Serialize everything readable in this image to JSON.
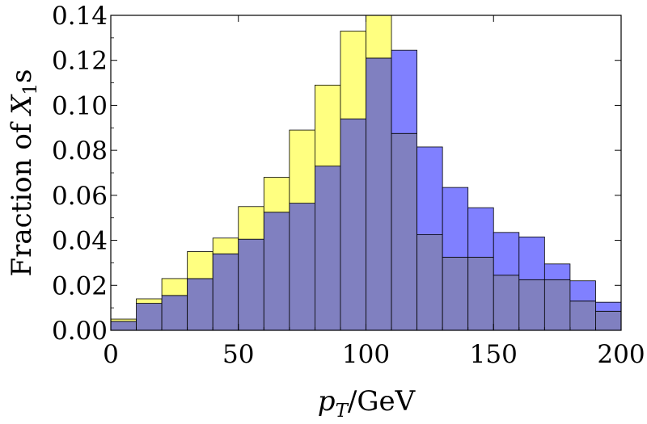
{
  "chart_data": {
    "type": "bar",
    "subtype": "overlaid-histogram",
    "title": "",
    "xlabel": {
      "prefix": "p",
      "subscript": "T",
      "suffix": "/GeV"
    },
    "ylabel": {
      "prefix": "Fraction of ",
      "var": "X",
      "subscript": "1",
      "suffix": "s"
    },
    "xlim": [
      0,
      200
    ],
    "ylim": [
      0,
      0.14
    ],
    "bin_width": 10,
    "bin_edges": [
      0,
      10,
      20,
      30,
      40,
      50,
      60,
      70,
      80,
      90,
      100,
      110,
      120,
      130,
      140,
      150,
      160,
      170,
      180,
      190,
      200
    ],
    "x_ticks": [
      0,
      50,
      100,
      150,
      200
    ],
    "x_tick_labels": [
      "0",
      "50",
      "100",
      "150",
      "200"
    ],
    "y_ticks": [
      0,
      0.02,
      0.04,
      0.06,
      0.08,
      0.1,
      0.12,
      0.14
    ],
    "y_tick_labels": [
      "0.00",
      "0.02",
      "0.04",
      "0.06",
      "0.08",
      "0.10",
      "0.12",
      "0.14"
    ],
    "series": [
      {
        "name": "yellow",
        "color": "#ffff80",
        "values": [
          0.005,
          0.014,
          0.023,
          0.035,
          0.041,
          0.055,
          0.068,
          0.089,
          0.109,
          0.133,
          0.146,
          0.0875,
          0.0425,
          0.0325,
          0.0325,
          0.0245,
          0.0225,
          0.0225,
          0.013,
          0.0085
        ]
      },
      {
        "name": "blue",
        "color": "#8080ff",
        "values": [
          0.004,
          0.012,
          0.0155,
          0.023,
          0.034,
          0.0405,
          0.0525,
          0.0565,
          0.073,
          0.094,
          0.121,
          0.1245,
          0.0815,
          0.0635,
          0.0545,
          0.0435,
          0.0415,
          0.0295,
          0.022,
          0.0125
        ]
      }
    ],
    "overlap_color": "#8080c0",
    "grid": false,
    "legend": "none"
  }
}
